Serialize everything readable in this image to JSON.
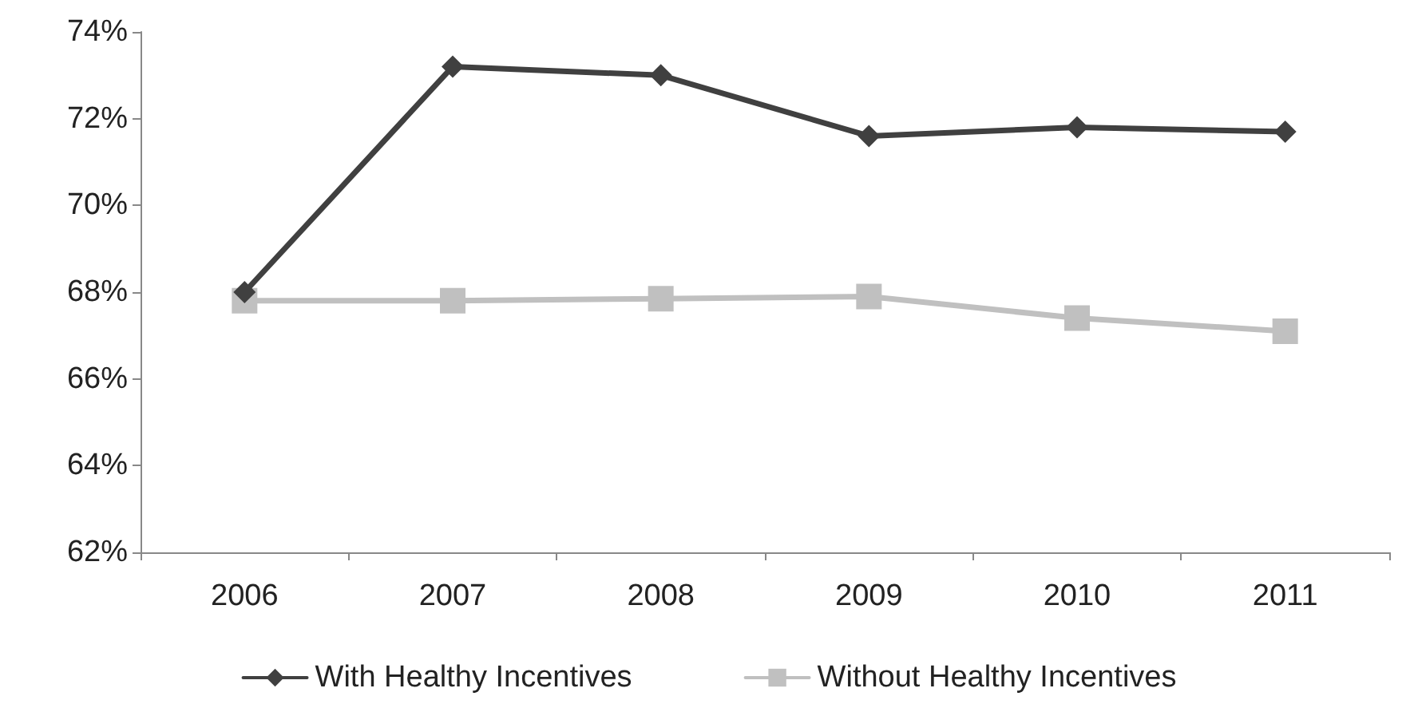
{
  "chart_data": {
    "type": "line",
    "categories": [
      "2006",
      "2007",
      "2008",
      "2009",
      "2010",
      "2011"
    ],
    "series": [
      {
        "name": "With Healthy Incentives",
        "color": "#404040",
        "marker": "diamond",
        "values": [
          68.0,
          73.2,
          73.0,
          71.6,
          71.8,
          71.7
        ]
      },
      {
        "name": "Without Healthy Incentives",
        "color": "#c0c0c0",
        "marker": "square",
        "values": [
          67.8,
          67.8,
          67.85,
          67.9,
          67.4,
          67.1
        ]
      }
    ],
    "ylim": [
      62,
      74
    ],
    "yticks": [
      {
        "value": 62,
        "label": "62%"
      },
      {
        "value": 64,
        "label": "64%"
      },
      {
        "value": 66,
        "label": "66%"
      },
      {
        "value": 68,
        "label": "68%"
      },
      {
        "value": 70,
        "label": "70%"
      },
      {
        "value": 72,
        "label": "72%"
      },
      {
        "value": 74,
        "label": "74%"
      }
    ],
    "grid": false,
    "legend": "bottom",
    "line_style": "solid"
  }
}
